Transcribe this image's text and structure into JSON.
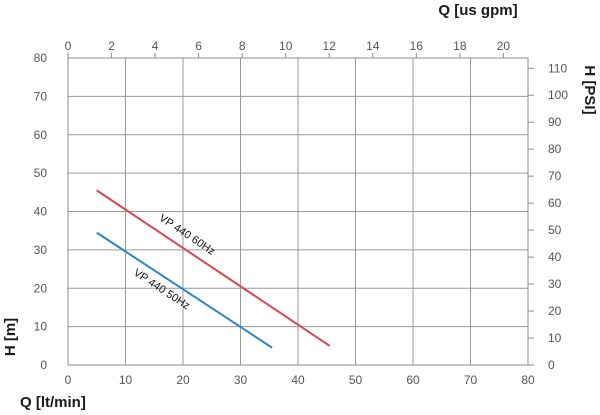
{
  "chart_data": {
    "type": "line",
    "axes": {
      "x_bottom": {
        "label": "Q [lt/min]",
        "ticks": [
          0,
          10,
          20,
          30,
          40,
          50,
          60,
          70,
          80
        ],
        "range": [
          0,
          80
        ]
      },
      "x_top": {
        "label": "Q [us gpm]",
        "ticks": [
          0,
          2,
          4,
          6,
          8,
          10,
          12,
          14,
          16,
          18,
          20
        ],
        "range": [
          0,
          21.13
        ]
      },
      "y_left": {
        "label": "H [m]",
        "ticks": [
          0,
          10,
          20,
          30,
          40,
          50,
          60,
          70,
          80
        ],
        "range": [
          0,
          80
        ]
      },
      "y_right": {
        "label": "H [PSI]",
        "ticks": [
          0,
          10,
          20,
          30,
          40,
          50,
          60,
          70,
          80,
          90,
          100,
          110
        ],
        "range": [
          0,
          113.8
        ]
      }
    },
    "grid": true,
    "series": [
      {
        "name": "VP 440 60Hz",
        "color": "#d9464d",
        "x": [
          5,
          45.5
        ],
        "y": [
          45.5,
          5
        ]
      },
      {
        "name": "VP 440 50Hz",
        "color": "#2f85c6",
        "x": [
          5,
          35.5
        ],
        "y": [
          34.5,
          4.5
        ]
      }
    ]
  }
}
